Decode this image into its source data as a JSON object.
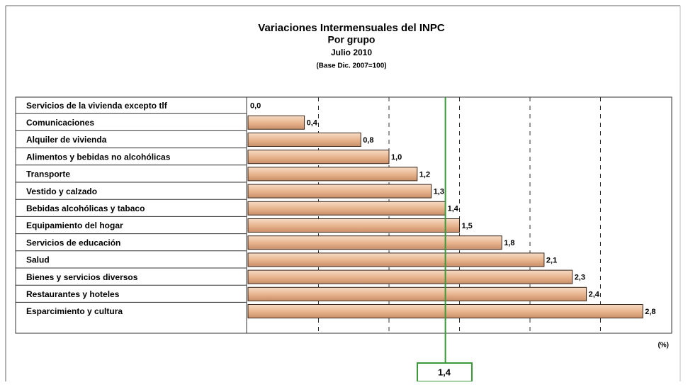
{
  "chart_data": {
    "type": "bar",
    "orientation": "horizontal",
    "title": "Variaciones Intermensuales del INPC",
    "subtitle": "Por grupo",
    "period": "Julio 2010",
    "note": "(Base Dic. 2007=100)",
    "x_label": "(%)",
    "categories": [
      "Servicios de la vivienda excepto tlf",
      "Comunicaciones",
      "Alquiler de vivienda",
      "Alimentos y bebidas no alcohólicas",
      "Transporte",
      "Vestido y calzado",
      "Bebidas alcohólicas y tabaco",
      "Equipamiento del hogar",
      "Servicios de educación",
      "Salud",
      "Bienes y servicios diversos",
      "Restaurantes y hoteles",
      "Esparcimiento y cultura"
    ],
    "values": [
      0.0,
      0.4,
      0.8,
      1.0,
      1.2,
      1.3,
      1.4,
      1.5,
      1.8,
      2.1,
      2.3,
      2.4,
      2.8
    ],
    "value_labels": [
      "0,0",
      "0,4",
      "0,8",
      "1,0",
      "1,2",
      "1,3",
      "1,4",
      "1,5",
      "1,8",
      "2,1",
      "2,3",
      "2,4",
      "2,8"
    ],
    "color": "#e9b690",
    "xlim": [
      0,
      3
    ],
    "xticks": [
      0.5,
      1,
      1.5,
      2,
      2.5
    ],
    "grid": true,
    "reference_line": {
      "value": 1.4,
      "label": "1,4",
      "color": "#3a9a3a"
    }
  }
}
